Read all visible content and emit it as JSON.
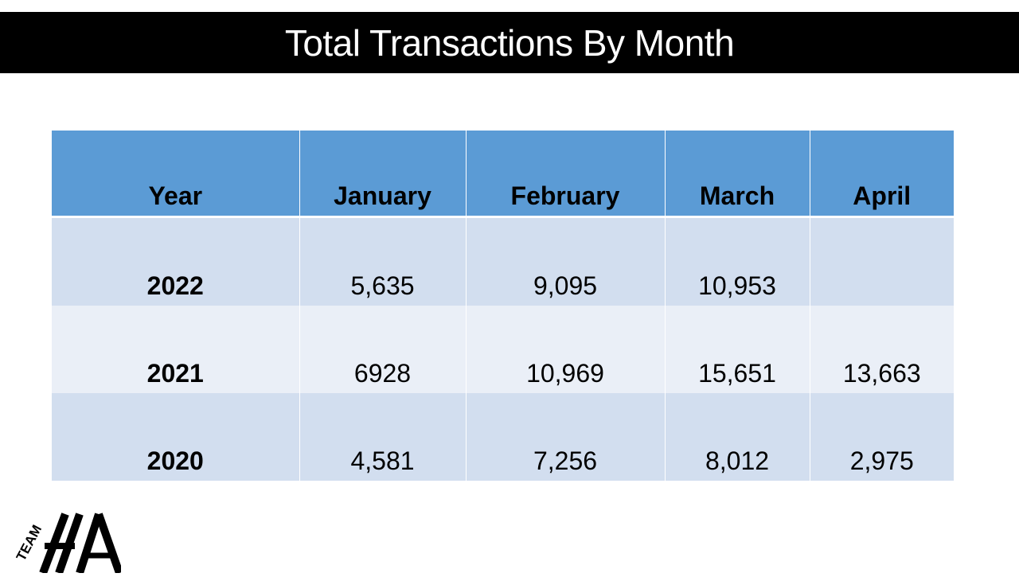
{
  "slide": {
    "title": "Total Transactions By Month"
  },
  "table": {
    "headers": [
      "Year",
      "January",
      "February",
      "March",
      "April"
    ],
    "rows": [
      {
        "year": "2022",
        "january": "5,635",
        "february": "9,095",
        "march": "10,953",
        "april": ""
      },
      {
        "year": "2021",
        "january": "6928",
        "february": "10,969",
        "march": "15,651",
        "april": "13,663"
      },
      {
        "year": "2020",
        "january": "4,581",
        "february": "7,256",
        "march": "8,012",
        "april": "2,975"
      }
    ]
  },
  "logo": {
    "text": "TEAM HA"
  },
  "colors": {
    "title_bar": "#000000",
    "header_fill": "#5b9bd5",
    "row_dark": "#d2deef",
    "row_light": "#eaeff7"
  }
}
